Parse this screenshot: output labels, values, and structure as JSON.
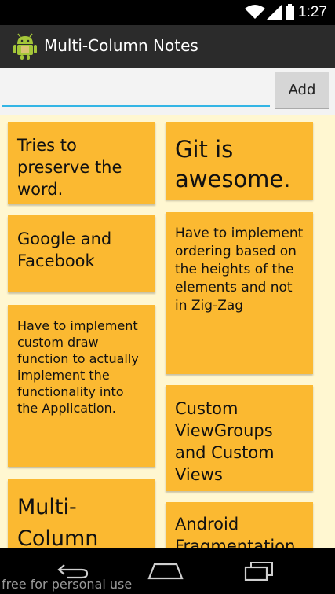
{
  "status_bar": {
    "time": "1:27",
    "icons": [
      "wifi-icon",
      "signal-icon",
      "battery-icon"
    ]
  },
  "action_bar": {
    "title": "Multi-Column Notes",
    "icon": "android-icon"
  },
  "input": {
    "value": "",
    "placeholder": "",
    "add_label": "Add"
  },
  "notes": {
    "left": [
      "Tries to preserve the word.",
      "Google and Facebook",
      "Have to implement custom draw function to actually implement the functionality into the Application.",
      "Multi-Column"
    ],
    "right": [
      "Git is awesome.",
      "Have to implement ordering based on the heights of the elements and not in Zig-Zag",
      "Custom ViewGroups and Custom Views",
      "Android Fragmentation"
    ]
  },
  "nav_bar": {
    "icons": [
      "back-icon",
      "home-icon",
      "recents-icon"
    ]
  },
  "watermark": "free for personal use",
  "colors": {
    "note": "#fbb931",
    "notes_background": "#fff7d1",
    "accent": "#33b5e5",
    "action_bar": "#2b2b2b"
  }
}
